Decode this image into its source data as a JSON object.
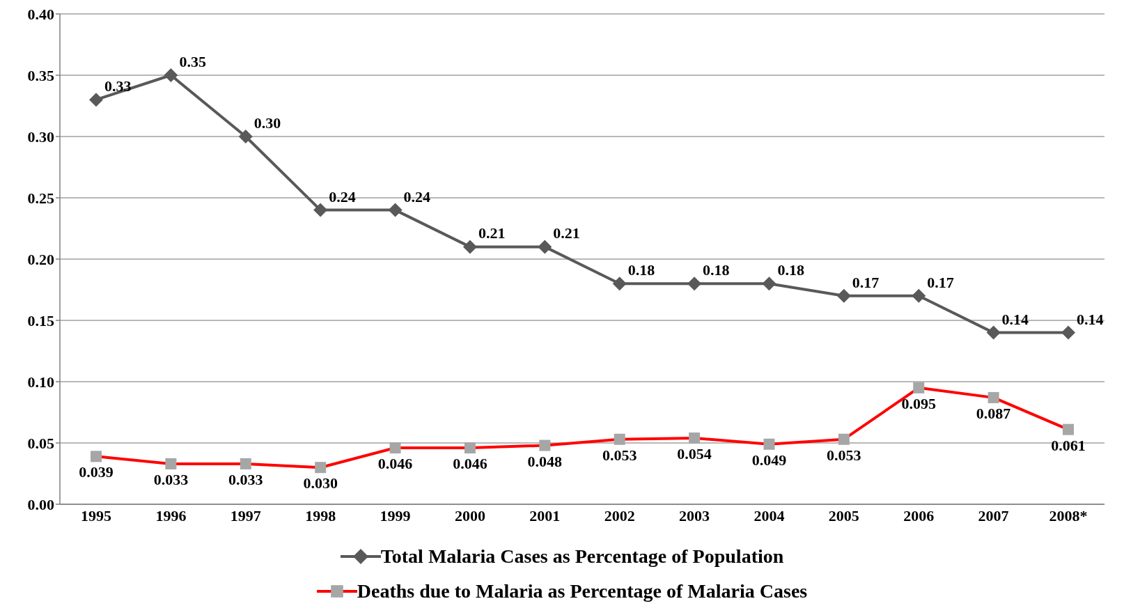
{
  "chart_data": {
    "type": "line",
    "categories": [
      "1995",
      "1996",
      "1997",
      "1998",
      "1999",
      "2000",
      "2001",
      "2002",
      "2003",
      "2004",
      "2005",
      "2006",
      "2007",
      "2008*"
    ],
    "series": [
      {
        "name": "Total Malaria Cases as Percentage of Population",
        "color": "#595959",
        "marker": "diamond",
        "values": [
          0.33,
          0.35,
          0.3,
          0.24,
          0.24,
          0.21,
          0.21,
          0.18,
          0.18,
          0.18,
          0.17,
          0.17,
          0.14,
          0.14
        ],
        "value_labels": [
          "0.33",
          "0.35",
          "0.30",
          "0.24",
          "0.24",
          "0.21",
          "0.21",
          "0.18",
          "0.18",
          "0.18",
          "0.17",
          "0.17",
          "0.14",
          "0.14"
        ]
      },
      {
        "name": "Deaths due to Malaria as Percentage of Malaria Cases",
        "color": "#ff0000",
        "marker": "square",
        "values": [
          0.039,
          0.033,
          0.033,
          0.03,
          0.046,
          0.046,
          0.048,
          0.053,
          0.054,
          0.049,
          0.053,
          0.095,
          0.087,
          0.061
        ],
        "value_labels": [
          "0.039",
          "0.033",
          "0.033",
          "0.030",
          "0.046",
          "0.046",
          "0.048",
          "0.053",
          "0.054",
          "0.049",
          "0.053",
          "0.095",
          "0.087",
          "0.061"
        ]
      }
    ],
    "ylim": [
      0,
      0.4
    ],
    "yticks": [
      {
        "value": 0,
        "label": "0.00"
      },
      {
        "value": 0.05,
        "label": "0.05"
      },
      {
        "value": 0.1,
        "label": "0.10"
      },
      {
        "value": 0.15,
        "label": "0.15"
      },
      {
        "value": 0.2,
        "label": "0.20"
      },
      {
        "value": 0.25,
        "label": "0.25"
      },
      {
        "value": 0.3,
        "label": "0.30"
      },
      {
        "value": 0.35,
        "label": "0.35"
      },
      {
        "value": 0.4,
        "label": "0.40"
      }
    ],
    "grid": "y",
    "legend": "bottom",
    "line_style": "solid"
  }
}
